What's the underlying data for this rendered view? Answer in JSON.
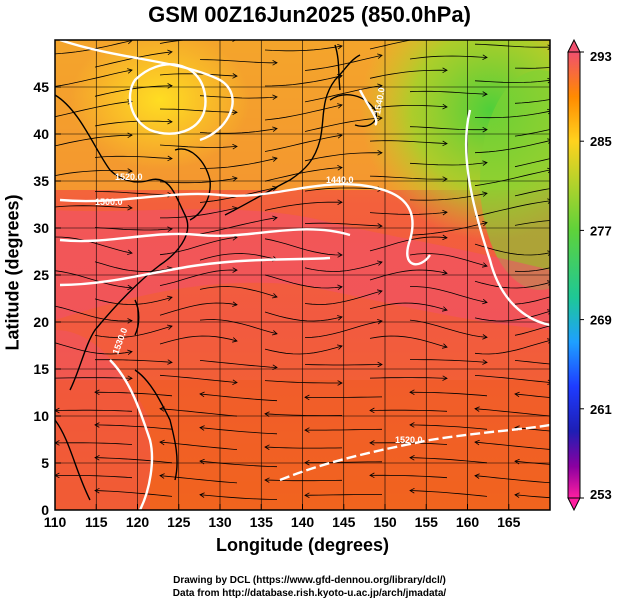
{
  "title": "GSM 00Z16Jun2025 (850.0hPa)",
  "xlabel": "Longitude (degrees)",
  "ylabel": "Latitude  (degrees)",
  "credits": [
    "Drawing by DCL (https://www.gfd-dennou.org/library/dcl/)",
    "Data from http://database.rish.kyoto-u.ac.jp/arch/jmadata/"
  ],
  "chart_data": {
    "type": "heatmap",
    "x_range": [
      110,
      170
    ],
    "y_range": [
      0,
      50
    ],
    "x_ticks": [
      "110",
      "115",
      "120",
      "125",
      "130",
      "135",
      "140",
      "145",
      "150",
      "155",
      "160",
      "165"
    ],
    "y_ticks": [
      "0",
      "5",
      "10",
      "15",
      "20",
      "25",
      "30",
      "35",
      "40",
      "45"
    ],
    "grid": true,
    "colorbar": {
      "range": [
        253,
        293
      ],
      "labels": [
        "293",
        "285",
        "277",
        "269",
        "261",
        "253"
      ],
      "colors": [
        "#f0506e",
        "#ff8a00",
        "#ffd21e",
        "#6ed21e",
        "#1ec864",
        "#1ec8c8",
        "#1e78ff",
        "#1e1eb4",
        "#780096",
        "#ff1ea0"
      ]
    },
    "contour_labels": [
      "1440.0",
      "1500.0",
      "1520.0",
      "1530.0",
      "1540.0",
      "1520.0"
    ],
    "colors": {
      "warm_south": "#f26a2a",
      "pink_band": "#f0506e",
      "orange_north": "#f3b030",
      "yellow_north": "#ffd21e",
      "green_ne": "#5ed23a",
      "contour": "#ffffff",
      "streamline": "#000000"
    }
  }
}
